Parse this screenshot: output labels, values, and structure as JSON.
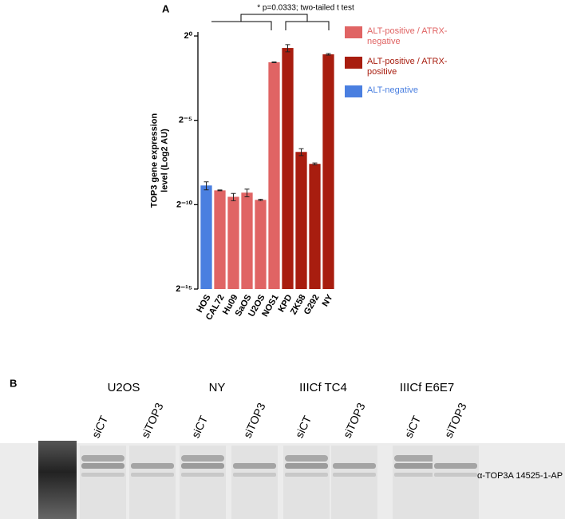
{
  "chart_data": {
    "type": "bar",
    "panel_label": "A",
    "annotation": "* p=0.0333; two-tailed t test",
    "y_label": "TOP3 gene expression level (Log2 AU)",
    "categories": [
      "HOS",
      "CAL72",
      "Hu09",
      "SaOS",
      "U2OS",
      "NOS1",
      "KPD",
      "ZK58",
      "G292",
      "NY"
    ],
    "series": [
      {
        "name": "ALT-positive / ATRX-negative",
        "color": "#e06464",
        "values": [
          null,
          0.00176,
          0.00135,
          0.0016,
          0.00119,
          0.339,
          null,
          null,
          null,
          null
        ],
        "errors": [
          null,
          3e-05,
          0.0002,
          0.00025,
          3e-05,
          0.005,
          null,
          null,
          null,
          null
        ]
      },
      {
        "name": "ALT-positive / ATRX-positive",
        "color": "#a81d0f",
        "values": [
          null,
          null,
          null,
          null,
          null,
          null,
          0.611,
          0.00853,
          0.00522,
          0.47
        ],
        "errors": [
          null,
          null,
          null,
          null,
          null,
          null,
          0.09,
          0.0012,
          0.0002,
          0.015
        ]
      },
      {
        "name": "ALT-negative",
        "color": "#4a7fe0",
        "values": [
          0.00215,
          null,
          null,
          null,
          null,
          null,
          null,
          null,
          null,
          null
        ],
        "errors": [
          0.00035,
          null,
          null,
          null,
          null,
          null,
          null,
          null,
          null,
          null
        ]
      }
    ],
    "log_scale": 2,
    "ylim": [
      3.0517578125e-05,
      1.18
    ],
    "yticks": [
      {
        "value": 1,
        "label": "2⁰"
      },
      {
        "value": 0.03125,
        "label": "2⁻⁵"
      },
      {
        "value": 0.0009765625,
        "label": "2⁻¹⁰"
      },
      {
        "value": 3.0517578125e-05,
        "label": "2⁻¹⁵"
      }
    ]
  },
  "panel_b": {
    "label": "B",
    "antibody": "α-TOP3A 14525-1-AP",
    "groups": [
      {
        "name": "U2OS",
        "lanes": [
          "siCT",
          "siTOP3"
        ]
      },
      {
        "name": "NY",
        "lanes": [
          "siCT",
          "siTOP3"
        ]
      },
      {
        "name": "IIICf TC4",
        "lanes": [
          "siCT",
          "siTOP3"
        ]
      },
      {
        "name": "IIICf E6E7",
        "lanes": [
          "siCT",
          "siTOP3"
        ]
      }
    ]
  }
}
